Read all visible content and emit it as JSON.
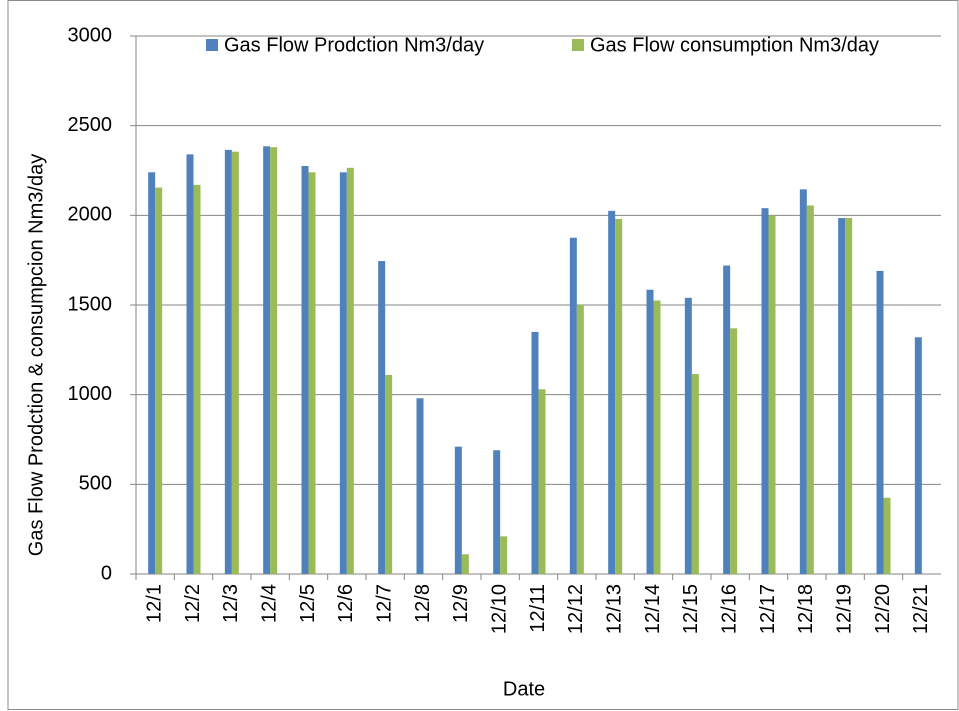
{
  "chart_data": {
    "type": "bar",
    "x_label": "Date",
    "y_label": "Gas Flow Prodction & consumpcion Nm3/day",
    "categories": [
      "12/1",
      "12/2",
      "12/3",
      "12/4",
      "12/5",
      "12/6",
      "12/7",
      "12/8",
      "12/9",
      "12/10",
      "12/11",
      "12/12",
      "12/13",
      "12/14",
      "12/15",
      "12/16",
      "12/17",
      "12/18",
      "12/19",
      "12/20",
      "12/21"
    ],
    "series": [
      {
        "name": "Gas Flow Prodction Nm3/day",
        "color": "#4f81bd",
        "values": [
          2240,
          2340,
          2365,
          2385,
          2275,
          2240,
          1745,
          980,
          710,
          690,
          1350,
          1875,
          2025,
          1585,
          1540,
          1720,
          2040,
          2145,
          1985,
          1690,
          1320
        ]
      },
      {
        "name": "Gas Flow consumption Nm3/day",
        "color": "#9bbb59",
        "values": [
          2155,
          2170,
          2355,
          2380,
          2240,
          2265,
          1110,
          0,
          110,
          210,
          1030,
          1500,
          1980,
          1525,
          1115,
          1370,
          2000,
          2055,
          1985,
          425,
          0
        ]
      }
    ],
    "ylim": [
      0,
      3000
    ],
    "yticks": [
      0,
      500,
      1000,
      1500,
      2000,
      2500,
      3000
    ],
    "grid": true,
    "legend": "top"
  }
}
